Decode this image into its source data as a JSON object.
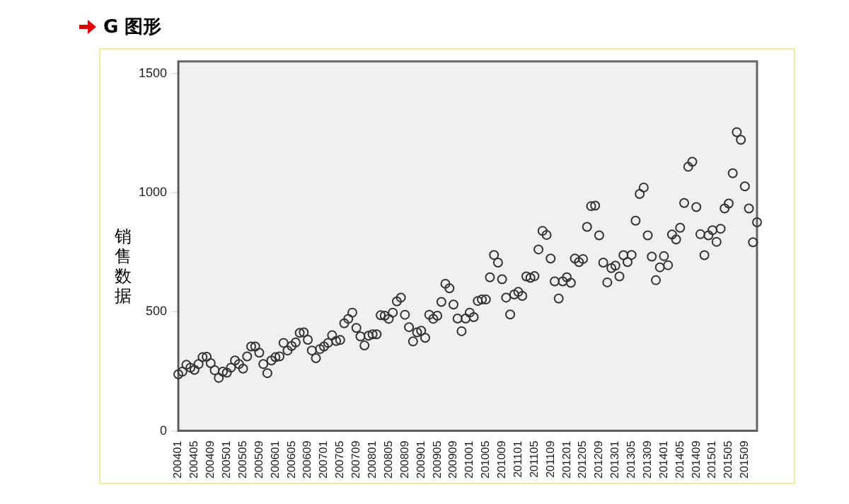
{
  "chart_data": {
    "type": "scatter",
    "title": "G 图形",
    "ylabel": "销售数据",
    "categories": [
      "200401",
      null,
      null,
      null,
      "200405",
      null,
      null,
      null,
      "200409",
      null,
      null,
      null,
      "200501",
      null,
      null,
      null,
      "200505",
      null,
      null,
      null,
      "200509",
      null,
      null,
      null,
      "200601",
      null,
      null,
      null,
      "200605",
      null,
      null,
      null,
      "200609",
      null,
      null,
      null,
      "200701",
      null,
      null,
      null,
      "200705",
      null,
      null,
      null,
      "200709",
      null,
      null,
      null,
      "200801",
      null,
      null,
      null,
      "200805",
      null,
      null,
      null,
      "200809",
      null,
      null,
      null,
      "200901",
      null,
      null,
      null,
      "200905",
      null,
      null,
      null,
      "200909",
      null,
      null,
      null,
      "201001",
      null,
      null,
      null,
      "201005",
      null,
      null,
      null,
      "201009",
      null,
      null,
      null,
      "201101",
      null,
      null,
      null,
      "201105",
      null,
      null,
      null,
      "201109",
      null,
      null,
      null,
      "201201",
      null,
      null,
      null,
      "201205",
      null,
      null,
      null,
      "201209",
      null,
      null,
      null,
      "201301",
      null,
      null,
      null,
      "201305",
      null,
      null,
      null,
      "201309",
      null,
      null,
      null,
      "201401",
      null,
      null,
      null,
      "201405",
      null,
      null,
      null,
      "201409",
      null,
      null,
      null,
      "201501",
      null,
      null,
      null,
      "201505",
      null,
      null,
      null,
      "201509",
      null,
      null,
      null
    ],
    "values": [
      237,
      248,
      277,
      265,
      256,
      280,
      309,
      311,
      284,
      254,
      222,
      248,
      244,
      265,
      295,
      280,
      261,
      312,
      354,
      354,
      328,
      280,
      242,
      295,
      309,
      312,
      369,
      337,
      356,
      371,
      411,
      413,
      382,
      337,
      305,
      343,
      354,
      369,
      401,
      377,
      381,
      451,
      470,
      496,
      432,
      396,
      358,
      399,
      405,
      405,
      485,
      483,
      470,
      496,
      543,
      559,
      487,
      435,
      375,
      413,
      420,
      390,
      487,
      470,
      483,
      541,
      617,
      598,
      530,
      471,
      418,
      471,
      496,
      477,
      545,
      551,
      551,
      644,
      738,
      706,
      636,
      559,
      488,
      572,
      583,
      566,
      648,
      642,
      649,
      761,
      839,
      822,
      723,
      627,
      555,
      627,
      644,
      621,
      723,
      708,
      721,
      856,
      943,
      945,
      820,
      706,
      623,
      683,
      693,
      648,
      737,
      708,
      738,
      882,
      994,
      1021,
      820,
      731,
      632,
      686,
      733,
      695,
      824,
      803,
      852,
      956,
      1108,
      1129,
      939,
      825,
      737,
      820,
      842,
      793,
      848,
      933,
      954,
      1081,
      1253,
      1221,
      1026,
      933,
      791,
      875
    ],
    "color": "#333333",
    "marker": "circle",
    "ylim": [
      0,
      1550
    ],
    "yticks": [
      0,
      500,
      1000,
      1500
    ],
    "grid": false,
    "legend": false
  }
}
